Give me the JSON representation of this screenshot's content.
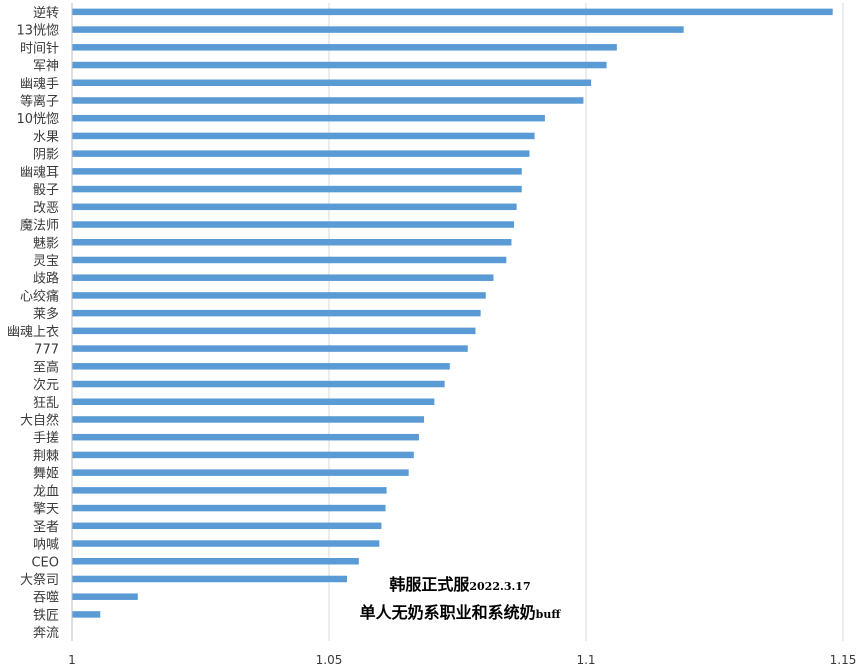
{
  "chart_data": {
    "type": "bar",
    "orientation": "horizontal",
    "categories": [
      "逆转",
      "13恍惚",
      "时间针",
      "军神",
      "幽魂手",
      "等离子",
      "10恍惚",
      "水果",
      "阴影",
      "幽魂耳",
      "骰子",
      "改恶",
      "魔法师",
      "魅影",
      "灵宝",
      "歧路",
      "心绞痛",
      "莱多",
      "幽魂上衣",
      "777",
      "至高",
      "次元",
      "狂乱",
      "大自然",
      "手搓",
      "荆棘",
      "舞姬",
      "龙血",
      "擎天",
      "圣者",
      "呐喊",
      "CEO",
      "大祭司",
      "吞噬",
      "铁匠",
      "奔流"
    ],
    "values": [
      1.148,
      1.119,
      1.106,
      1.104,
      1.101,
      1.0995,
      1.092,
      1.09,
      1.089,
      1.0875,
      1.0875,
      1.0865,
      1.086,
      1.0855,
      1.0845,
      1.082,
      1.0805,
      1.0795,
      1.0785,
      1.077,
      1.0735,
      1.0725,
      1.0705,
      1.0685,
      1.0675,
      1.0665,
      1.0655,
      1.0612,
      1.061,
      1.0602,
      1.0598,
      1.0558,
      1.0535,
      1.0128,
      1.0055,
      1.0
    ],
    "xlim": [
      1,
      1.15
    ],
    "xticks": [
      "1",
      "1.05",
      "1.1",
      "1.15"
    ],
    "grid": true,
    "bar_color": "#5b9bd5",
    "annotation": {
      "line1_main": "韩服正式服",
      "line1_small": "2022.3.17",
      "line2_main": "单人无奶系职业和系统奶",
      "line2_small": "buff"
    }
  }
}
